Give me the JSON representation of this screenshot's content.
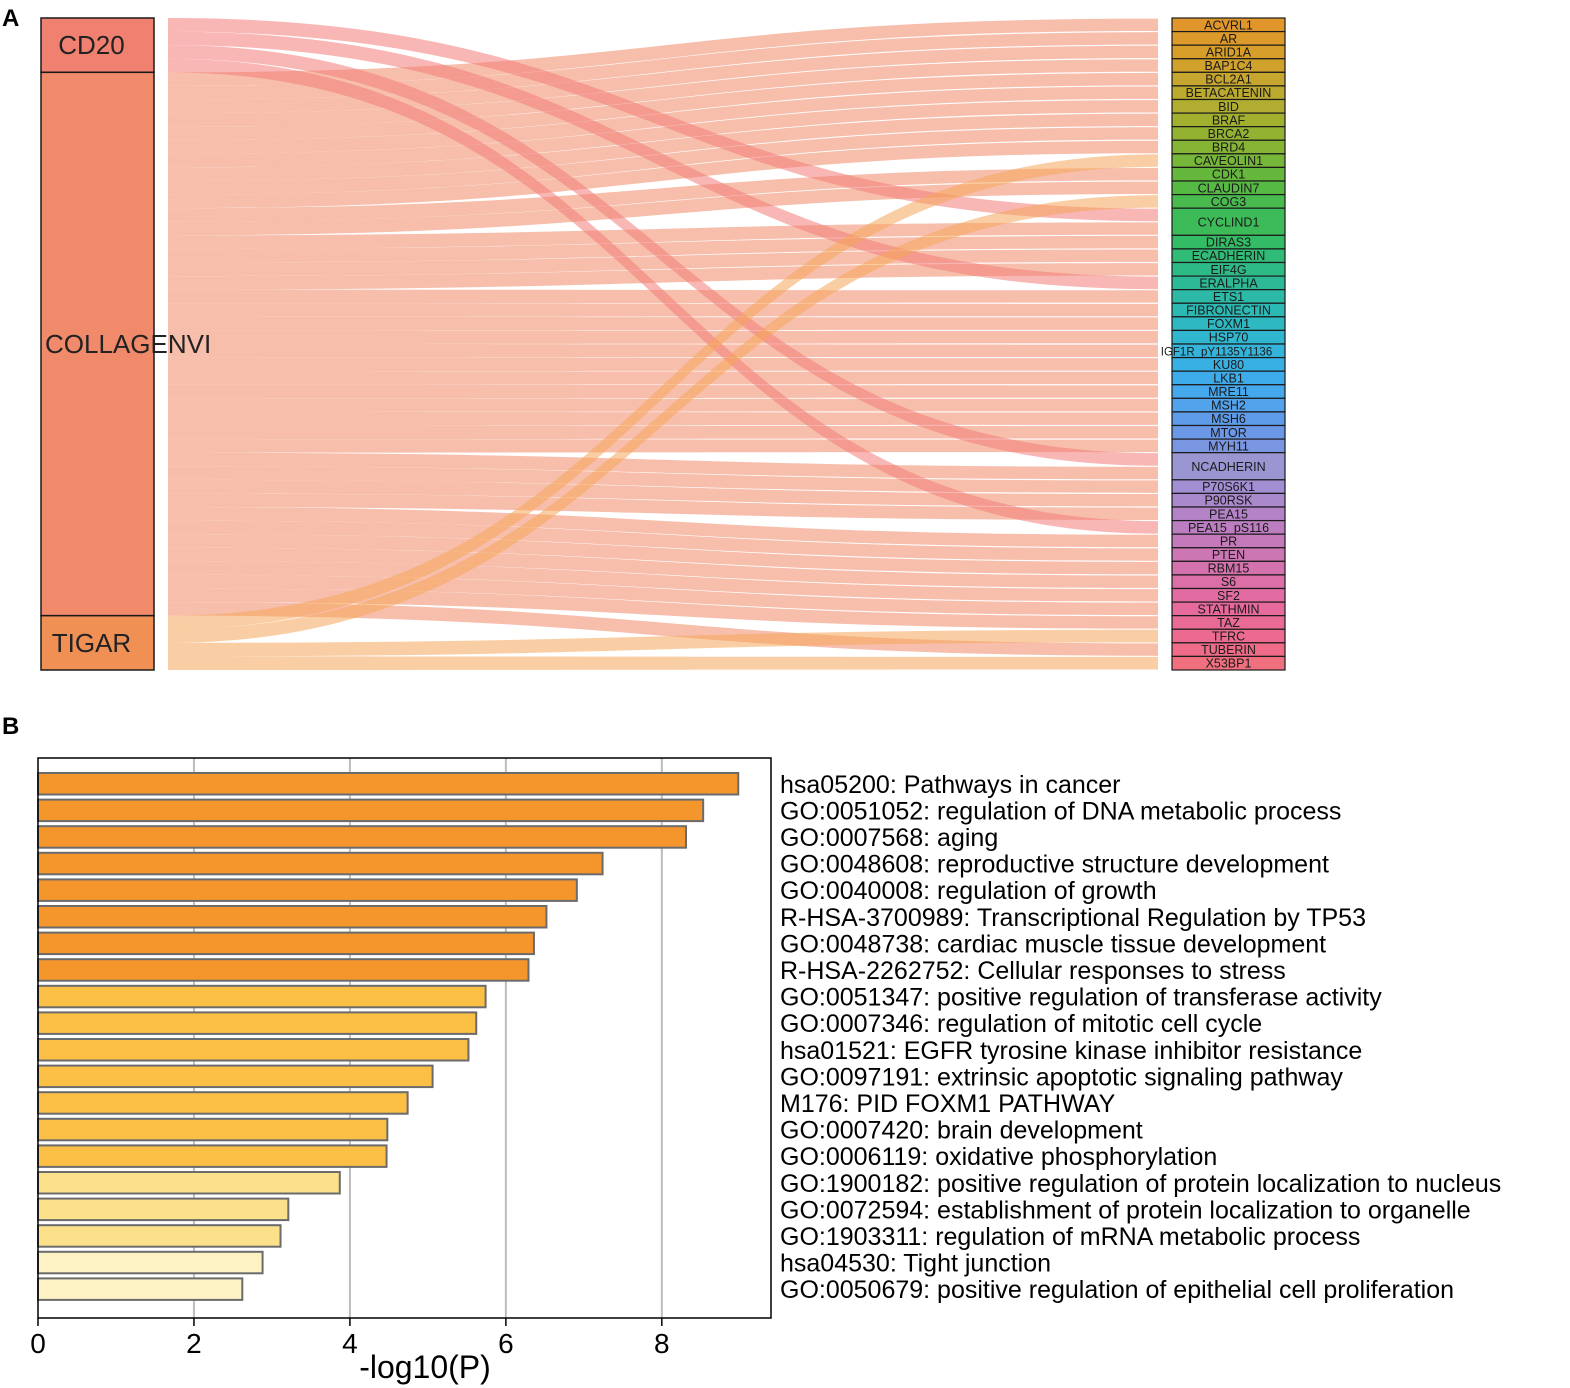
{
  "panels": {
    "a_label": "A",
    "b_label": "B"
  },
  "chart_data": [
    {
      "type": "sankey",
      "panel": "A",
      "sources": [
        {
          "name": "CD20",
          "color": "#f08070"
        },
        {
          "name": "COLLAGENVI",
          "color": "#f08a6a"
        },
        {
          "name": "TIGAR",
          "color": "#f09055"
        }
      ],
      "targets": [
        {
          "name": "ACVRL1",
          "color": "#e0962a"
        },
        {
          "name": "AR",
          "color": "#dc9a2a"
        },
        {
          "name": "ARID1A",
          "color": "#d89e2a"
        },
        {
          "name": "BAP1C4",
          "color": "#d0a22c"
        },
        {
          "name": "BCL2A1",
          "color": "#c6a62e"
        },
        {
          "name": "BETACATENIN",
          "color": "#bcaa30"
        },
        {
          "name": "BID",
          "color": "#b0ad30"
        },
        {
          "name": "BRAF",
          "color": "#a2b030"
        },
        {
          "name": "BRCA2",
          "color": "#94b232"
        },
        {
          "name": "BRD4",
          "color": "#86b434"
        },
        {
          "name": "CAVEOLIN1",
          "color": "#76b638"
        },
        {
          "name": "CDK1",
          "color": "#66b83c"
        },
        {
          "name": "CLAUDIN7",
          "color": "#56b944"
        },
        {
          "name": "COG3",
          "color": "#48ba4e"
        },
        {
          "name": "CYCLIND1",
          "color": "#3cbb58"
        },
        {
          "name": "DIRAS3",
          "color": "#34bb66"
        },
        {
          "name": "ECADHERIN",
          "color": "#30bb76"
        },
        {
          "name": "EIF4G",
          "color": "#2eba86"
        },
        {
          "name": "ERALPHA",
          "color": "#2cba96"
        },
        {
          "name": "ETS1",
          "color": "#2cbaa6"
        },
        {
          "name": "FIBRONECTIN",
          "color": "#2cb9b4"
        },
        {
          "name": "FOXM1",
          "color": "#2eb8c2"
        },
        {
          "name": "HSP70",
          "color": "#30b6ce"
        },
        {
          "name": "IGF1R_pY1135Y1136",
          "color": "#34b4da"
        },
        {
          "name": "KU80",
          "color": "#38b0e4"
        },
        {
          "name": "LKB1",
          "color": "#3eacea"
        },
        {
          "name": "MRE11",
          "color": "#46a8ec"
        },
        {
          "name": "MSH2",
          "color": "#52a2ec"
        },
        {
          "name": "MSH6",
          "color": "#5e9cea"
        },
        {
          "name": "MTOR",
          "color": "#6a98e6"
        },
        {
          "name": "MYH11",
          "color": "#7a96e0"
        },
        {
          "name": "NCADHERIN",
          "color": "#9a96d2"
        },
        {
          "name": "P70S6K1",
          "color": "#a28ed2"
        },
        {
          "name": "P90RSK",
          "color": "#aa88cc"
        },
        {
          "name": "PEA15",
          "color": "#b482c6"
        },
        {
          "name": "PEA15_pS116",
          "color": "#bc7ec0"
        },
        {
          "name": "PR",
          "color": "#c47aba"
        },
        {
          "name": "PTEN",
          "color": "#cc76b4"
        },
        {
          "name": "RBM15",
          "color": "#d472ae"
        },
        {
          "name": "S6",
          "color": "#dc6ea8"
        },
        {
          "name": "SF2",
          "color": "#e26ca2"
        },
        {
          "name": "STATHMIN",
          "color": "#e66a9c"
        },
        {
          "name": "TAZ",
          "color": "#ea6a96"
        },
        {
          "name": "TFRC",
          "color": "#ec6a90"
        },
        {
          "name": "TUBERIN",
          "color": "#ee6c88"
        },
        {
          "name": "X53BP1",
          "color": "#f07080"
        }
      ],
      "links": [
        {
          "source": "CD20",
          "target": "CYCLIND1"
        },
        {
          "source": "CD20",
          "target": "ERALPHA"
        },
        {
          "source": "CD20",
          "target": "NCADHERIN"
        },
        {
          "source": "CD20",
          "target": "PEA15_pS116"
        },
        {
          "source": "TIGAR",
          "target": "CAVEOLIN1"
        },
        {
          "source": "TIGAR",
          "target": "COG3"
        },
        {
          "source": "TIGAR",
          "target": "TFRC"
        },
        {
          "source": "TIGAR",
          "target": "X53BP1"
        },
        {
          "source": "COLLAGENVI",
          "target": "ALL_REMAINING"
        }
      ]
    },
    {
      "type": "bar",
      "orientation": "horizontal",
      "panel": "B",
      "xlabel": "-log10(P)",
      "xlim": [
        0,
        9.4
      ],
      "xticks": [
        0,
        2,
        4,
        6,
        8
      ],
      "grid": true,
      "categories": [
        "hsa05200: Pathways in cancer",
        "GO:0051052: regulation of DNA metabolic process",
        "GO:0007568: aging",
        "GO:0048608: reproductive structure development",
        "GO:0040008: regulation of growth",
        "R-HSA-3700989: Transcriptional Regulation by TP53",
        "GO:0048738: cardiac muscle tissue development",
        "R-HSA-2262752: Cellular responses to stress",
        "GO:0051347: positive regulation of transferase activity",
        "GO:0007346: regulation of mitotic cell cycle",
        "hsa01521: EGFR tyrosine kinase inhibitor resistance",
        "GO:0097191: extrinsic apoptotic signaling pathway",
        "M176: PID FOXM1 PATHWAY",
        "GO:0007420: brain development",
        "GO:0006119: oxidative phosphorylation",
        "GO:1900182: positive regulation of protein localization to nucleus",
        "GO:0072594: establishment of protein localization to organelle",
        "GO:1903311: regulation of mRNA metabolic process",
        "hsa04530: Tight junction",
        "GO:0050679: positive regulation of epithelial cell proliferation"
      ],
      "values": [
        8.98,
        8.53,
        8.31,
        7.24,
        6.91,
        6.52,
        6.36,
        6.29,
        5.74,
        5.62,
        5.52,
        5.06,
        4.74,
        4.48,
        4.47,
        3.87,
        3.21,
        3.11,
        2.88,
        2.62
      ],
      "colors": [
        "#f5962d",
        "#f5962d",
        "#f5962d",
        "#f5962d",
        "#f5962d",
        "#f5962d",
        "#f5962d",
        "#f5962d",
        "#fbbf46",
        "#fbbf46",
        "#fbbf46",
        "#fbbf46",
        "#fbbf46",
        "#fbbf46",
        "#fbbf46",
        "#fce18a",
        "#fce18a",
        "#fce18a",
        "#fdf2c4",
        "#fdf2c4"
      ]
    }
  ]
}
